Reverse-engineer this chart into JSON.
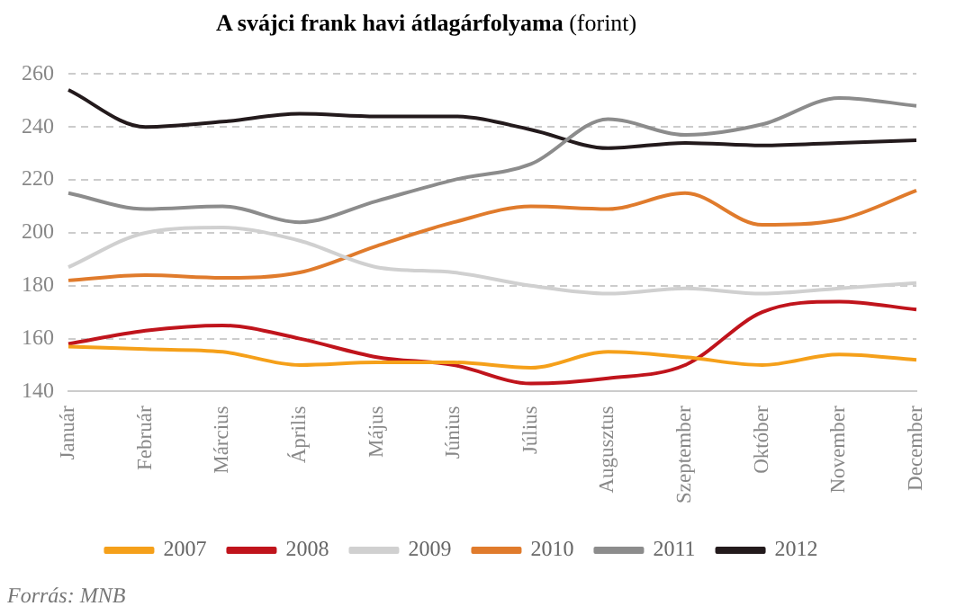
{
  "chart_data": {
    "type": "line",
    "title": "A svájci frank havi átlagárfolyama",
    "subtitle": "(forint)",
    "categories": [
      "Január",
      "Február",
      "Március",
      "Április",
      "Május",
      "Június",
      "Július",
      "Augusztus",
      "Szeptember",
      "Október",
      "November",
      "December"
    ],
    "series": [
      {
        "name": "2007",
        "color": "#f5a01a",
        "values": [
          157,
          156,
          155,
          150,
          151,
          151,
          149,
          155,
          153,
          150,
          154,
          152
        ]
      },
      {
        "name": "2008",
        "color": "#c0141c",
        "values": [
          158,
          163,
          165,
          160,
          153,
          150,
          143,
          145,
          150,
          170,
          174,
          171
        ]
      },
      {
        "name": "2009",
        "color": "#d0d0d0",
        "values": [
          187,
          200,
          202,
          197,
          187,
          185,
          180,
          177,
          179,
          177,
          179,
          181
        ]
      },
      {
        "name": "2010",
        "color": "#e07b2c",
        "values": [
          182,
          184,
          183,
          185,
          195,
          204,
          210,
          209,
          215,
          203,
          205,
          216
        ]
      },
      {
        "name": "2011",
        "color": "#8c8c8c",
        "values": [
          215,
          209,
          210,
          204,
          212,
          220,
          226,
          243,
          237,
          241,
          251,
          248
        ]
      },
      {
        "name": "2012",
        "color": "#231a1c",
        "values": [
          254,
          240,
          242,
          245,
          244,
          244,
          239,
          232,
          234,
          233,
          234,
          235
        ]
      }
    ],
    "ylim": [
      140,
      260
    ],
    "yticks": [
      140,
      160,
      180,
      200,
      220,
      240,
      260
    ],
    "grid": "y",
    "legend": "bottom",
    "marker": "none",
    "line_style": "solid",
    "annotations": [
      "Forrás: MNB"
    ]
  }
}
